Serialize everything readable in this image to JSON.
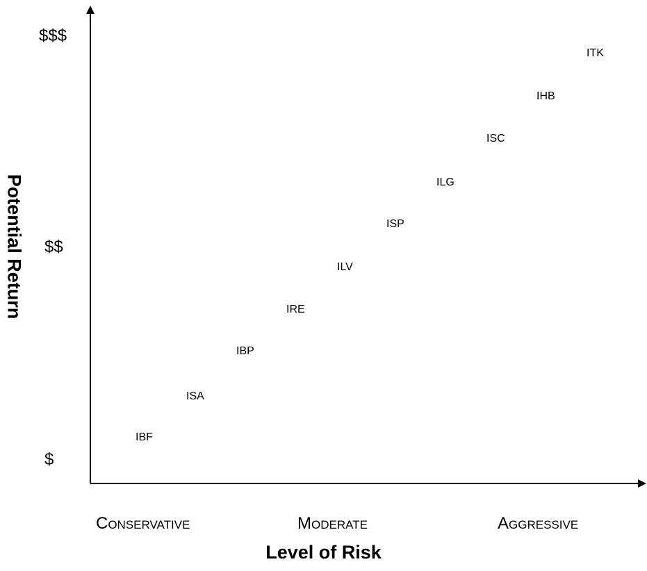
{
  "diagram": {
    "y_axis_title": "Potential Return",
    "x_axis_title": "Level of Risk",
    "y_levels": [
      "$",
      "$$",
      "$$$"
    ],
    "x_categories": [
      "Conservative",
      "Moderate",
      "Aggressive"
    ],
    "funds": [
      "IBF",
      "ISA",
      "IBP",
      "IRE",
      "ILV",
      "ISP",
      "ILG",
      "ISC",
      "IHB",
      "ITK"
    ]
  }
}
